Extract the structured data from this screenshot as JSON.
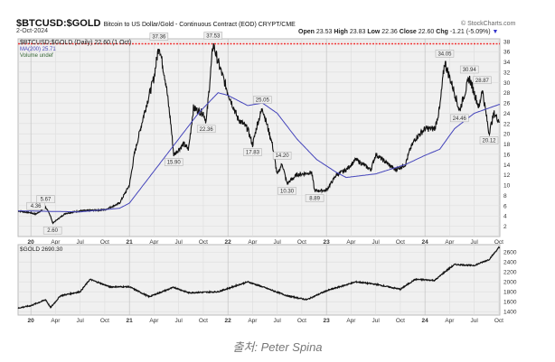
{
  "header": {
    "symbol": "$BTCUSD:$GOLD",
    "description": "Bitcoin to US Dollar/Gold - Continuous Contract (EOD) CRYPT/CME",
    "date": "2-Oct-2024",
    "brand": "© StockCharts.com",
    "open_label": "Open",
    "open": "23.53",
    "high_label": "High",
    "high": "23.83",
    "low_label": "Low",
    "low": "22.36",
    "close_label": "Close",
    "close": "22.60",
    "chg_label": "Chg",
    "chg": "-1.21 (-5.09%)"
  },
  "legend": {
    "main": "$BTCUSD:$GOLD (Daily) 22.60 (1 Oct)",
    "ma": "MA(200) 25.71",
    "volume": "Volume undef",
    "gold": "$GOLD 2690.30"
  },
  "caption": "출처: Peter Spina",
  "colors": {
    "price": "#111111",
    "ma": "#4444bb",
    "ref": "#ee3333",
    "panel": "#f0f0f0"
  },
  "chart_data": [
    {
      "type": "line",
      "title": "$BTCUSD:$GOLD (Daily)",
      "ylim": [
        0,
        38.5
      ],
      "yticks": [
        2,
        4,
        6,
        8,
        10,
        12,
        14,
        16,
        18,
        20,
        22,
        24,
        26,
        28,
        30,
        32,
        34,
        36,
        38
      ],
      "xticks": [
        "20",
        "Apr",
        "Jul",
        "Oct",
        "21",
        "Apr",
        "Jul",
        "Oct",
        "22",
        "Apr",
        "Jul",
        "Oct",
        "23",
        "Apr",
        "Jul",
        "Oct",
        "24",
        "Apr",
        "Jul",
        "Oct"
      ],
      "reference_line": 37.53,
      "series": [
        {
          "name": "$BTCUSD:$GOLD",
          "x": [
            2019.87,
            2020.0,
            2020.05,
            2020.15,
            2020.2,
            2020.22,
            2020.35,
            2020.5,
            2020.75,
            2020.9,
            2021.0,
            2021.05,
            2021.1,
            2021.15,
            2021.25,
            2021.3,
            2021.37,
            2021.42,
            2021.45,
            2021.55,
            2021.6,
            2021.65,
            2021.75,
            2021.78,
            2021.85,
            2021.9,
            2022.0,
            2022.1,
            2022.2,
            2022.25,
            2022.3,
            2022.35,
            2022.45,
            2022.5,
            2022.55,
            2022.6,
            2022.7,
            2022.85,
            2022.88,
            2023.0,
            2023.1,
            2023.2,
            2023.3,
            2023.45,
            2023.5,
            2023.7,
            2023.8,
            2023.85,
            2023.9,
            2024.0,
            2024.1,
            2024.15,
            2024.2,
            2024.3,
            2024.35,
            2024.45,
            2024.55,
            2024.58,
            2024.65,
            2024.7,
            2024.75
          ],
          "values": [
            5.0,
            4.6,
            4.36,
            5.67,
            4.0,
            2.6,
            4.5,
            5.0,
            5.2,
            6.5,
            10,
            16,
            20,
            24,
            31,
            37.36,
            30,
            22,
            15.9,
            18,
            17,
            25,
            24,
            22.36,
            37.53,
            34,
            28,
            23,
            21,
            17.83,
            22,
            25.05,
            18,
            12,
            14.2,
            10.3,
            12,
            12.5,
            8.89,
            9,
            12,
            13,
            15,
            13,
            16,
            13,
            14,
            17,
            19,
            21,
            21,
            25,
            34.05,
            28,
            24.46,
            30.94,
            25,
            28.87,
            20.12,
            24,
            22.6
          ]
        },
        {
          "name": "MA(200)",
          "x": [
            2019.87,
            2020.5,
            2020.9,
            2021.0,
            2021.3,
            2021.5,
            2021.7,
            2021.9,
            2022.0,
            2022.2,
            2022.35,
            2022.5,
            2022.7,
            2022.9,
            2023.1,
            2023.2,
            2023.5,
            2023.8,
            2024.0,
            2024.15,
            2024.3,
            2024.5,
            2024.75
          ],
          "values": [
            5.0,
            4.8,
            5.5,
            6.5,
            14,
            19,
            24,
            28,
            27.5,
            25.5,
            26,
            24,
            19,
            15,
            12.5,
            11.5,
            12.2,
            14,
            15.8,
            17,
            21,
            24,
            25.7
          ]
        }
      ],
      "annotations": [
        {
          "x": 2020.05,
          "y": 4.36,
          "text": "4.36"
        },
        {
          "x": 2020.15,
          "y": 5.67,
          "text": "5.67"
        },
        {
          "x": 2020.22,
          "y": 2.6,
          "text": "2.60"
        },
        {
          "x": 2021.3,
          "y": 37.36,
          "text": "37.36"
        },
        {
          "x": 2021.45,
          "y": 15.9,
          "text": "15.90"
        },
        {
          "x": 2021.78,
          "y": 22.36,
          "text": "22.36"
        },
        {
          "x": 2021.85,
          "y": 37.53,
          "text": "37.53"
        },
        {
          "x": 2022.25,
          "y": 17.83,
          "text": "17.83"
        },
        {
          "x": 2022.35,
          "y": 25.05,
          "text": "25.05"
        },
        {
          "x": 2022.55,
          "y": 14.2,
          "text": "14.20"
        },
        {
          "x": 2022.6,
          "y": 10.3,
          "text": "10.30"
        },
        {
          "x": 2022.88,
          "y": 8.89,
          "text": "8.89"
        },
        {
          "x": 2024.2,
          "y": 34.05,
          "text": "34.05"
        },
        {
          "x": 2024.35,
          "y": 24.46,
          "text": "24.46"
        },
        {
          "x": 2024.45,
          "y": 30.94,
          "text": "30.94"
        },
        {
          "x": 2024.58,
          "y": 28.87,
          "text": "28.87"
        },
        {
          "x": 2024.65,
          "y": 20.12,
          "text": "20.12"
        }
      ]
    },
    {
      "type": "line",
      "title": "$GOLD",
      "ylim": [
        1330,
        2750
      ],
      "yticks": [
        1400,
        1600,
        1800,
        2000,
        2200,
        2400,
        2600
      ],
      "series": [
        {
          "name": "$GOLD",
          "x": [
            2019.87,
            2020.0,
            2020.15,
            2020.2,
            2020.3,
            2020.5,
            2020.6,
            2020.8,
            2021.0,
            2021.2,
            2021.45,
            2021.6,
            2021.9,
            2022.2,
            2022.35,
            2022.6,
            2022.8,
            2023.0,
            2023.3,
            2023.5,
            2023.75,
            2023.9,
            2024.1,
            2024.2,
            2024.3,
            2024.5,
            2024.65,
            2024.75
          ],
          "values": [
            1470,
            1520,
            1640,
            1480,
            1720,
            1800,
            2050,
            1900,
            1900,
            1700,
            1890,
            1780,
            1800,
            2000,
            1900,
            1720,
            1640,
            1820,
            2000,
            1950,
            1850,
            2050,
            2030,
            2200,
            2350,
            2330,
            2450,
            2690
          ]
        }
      ]
    }
  ]
}
